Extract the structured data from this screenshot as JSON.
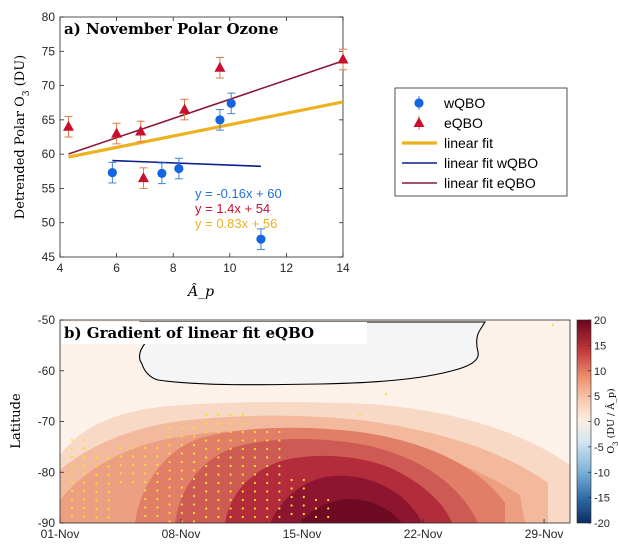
{
  "chart_data": [
    {
      "type": "scatter",
      "title": "a) November Polar Ozone",
      "xlabel": "Â_p",
      "ylabel": "Detrended Polar O",
      "ylabel_sub": "3",
      "ylabel_unit": "(DU)",
      "xlim": [
        4,
        14
      ],
      "ylim": [
        45,
        80
      ],
      "xticks": [
        "4",
        "6",
        "8",
        "10",
        "12",
        "14"
      ],
      "yticks": [
        "45",
        "50",
        "55",
        "60",
        "65",
        "70",
        "75",
        "80"
      ],
      "series": [
        {
          "name": "wQBO",
          "color": "#1565e0",
          "marker": "circle",
          "x": [
            5.85,
            7.6,
            8.2,
            9.65,
            10.05,
            11.1
          ],
          "y": [
            57.3,
            57.2,
            57.9,
            65.0,
            67.4,
            47.6
          ],
          "err": [
            1.5,
            1.5,
            1.5,
            1.5,
            1.5,
            1.5
          ]
        },
        {
          "name": "eQBO",
          "color": "#c8102e",
          "marker": "triangle",
          "x": [
            4.3,
            6.0,
            6.85,
            6.95,
            8.4,
            9.65,
            14.0
          ],
          "y": [
            64.0,
            63.0,
            63.3,
            56.5,
            66.5,
            72.6,
            73.8
          ],
          "err": [
            1.5,
            1.5,
            1.5,
            1.5,
            1.5,
            1.5,
            1.5
          ]
        }
      ],
      "fits": [
        {
          "name": "linear fit",
          "color": "#edb120",
          "equation": "y = 0.83x + 56",
          "slope": 0.83,
          "intercept": 56,
          "x_range": [
            4.3,
            14
          ]
        },
        {
          "name": "linear fit wQBO",
          "color": "#0b1f8a",
          "equation": "y = -0.16x + 60",
          "eq_color": "#1f6fd6",
          "slope": -0.16,
          "intercept": 60,
          "x_range": [
            5.85,
            11.1
          ]
        },
        {
          "name": "linear fit eQBO",
          "color": "#8b1a3a",
          "equation": "y = 1.4x + 54",
          "eq_color": "#c8102e",
          "slope": 1.4,
          "intercept": 54,
          "x_range": [
            4.3,
            14
          ]
        }
      ],
      "legend_position": "outside-right"
    },
    {
      "type": "heatmap",
      "title": "b) Gradient of linear fit eQBO",
      "ylabel": "Latitude",
      "xticks": [
        "01-Nov",
        "08-Nov",
        "15-Nov",
        "22-Nov",
        "29-Nov"
      ],
      "xtick_days": [
        1,
        8,
        15,
        22,
        29
      ],
      "xlim_days": [
        1,
        30.5
      ],
      "yticks": [
        "-50",
        "-60",
        "-70",
        "-80",
        "-90"
      ],
      "ylim": [
        -90,
        -50
      ],
      "colorbar": {
        "ticks": [
          "20",
          "15",
          "10",
          "5",
          "0",
          "-5",
          "-10",
          "-15",
          "-20"
        ],
        "range": [
          -20,
          20
        ],
        "label": "O",
        "label_sub": "3",
        "label_unit": "(DU / Â_p)"
      },
      "significance_marker_color": "#f5e02a"
    }
  ]
}
